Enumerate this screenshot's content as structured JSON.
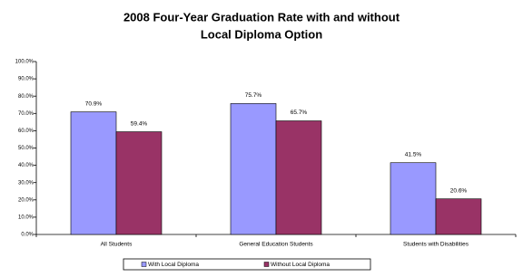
{
  "chart_data": {
    "type": "bar",
    "title": [
      "2008 Four-Year Graduation Rate with and without",
      "Local Diploma Option"
    ],
    "categories": [
      "All Students",
      "General Education Students",
      "Students with Disabilities"
    ],
    "series": [
      {
        "name": "With Local Diploma",
        "color": "#9999ff",
        "values": [
          70.9,
          75.7,
          41.5
        ],
        "value_labels": [
          "70.9%",
          "75.7%",
          "41.5%"
        ]
      },
      {
        "name": "Without Local Diploma",
        "color": "#993366",
        "values": [
          59.4,
          65.7,
          20.6
        ],
        "value_labels": [
          "59.4%",
          "65.7%",
          "20.6%"
        ]
      }
    ],
    "ylim": [
      0,
      100
    ],
    "yticks": [
      {
        "value": 0,
        "label": "0.0%"
      },
      {
        "value": 10,
        "label": "10.0%"
      },
      {
        "value": 20,
        "label": "20.0%"
      },
      {
        "value": 30,
        "label": "30.0%"
      },
      {
        "value": 40,
        "label": "40.0%"
      },
      {
        "value": 50,
        "label": "50.0%"
      },
      {
        "value": 60,
        "label": "60.0%"
      },
      {
        "value": 70,
        "label": "70.0%"
      },
      {
        "value": 80,
        "label": "80.0%"
      },
      {
        "value": 90,
        "label": "90.0%"
      },
      {
        "value": 100,
        "label": "100.0%"
      }
    ],
    "grid": false,
    "legend": "bottom"
  }
}
